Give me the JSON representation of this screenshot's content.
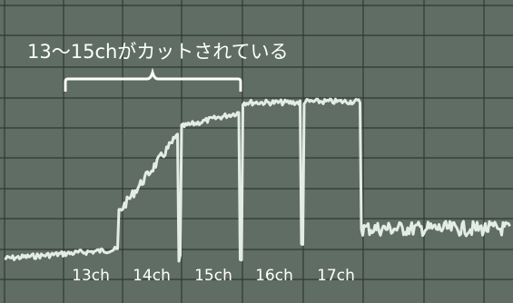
{
  "annotation": "13～15chがカットされている",
  "channels": [
    "13ch",
    "14ch",
    "15ch",
    "16ch",
    "17ch"
  ]
}
